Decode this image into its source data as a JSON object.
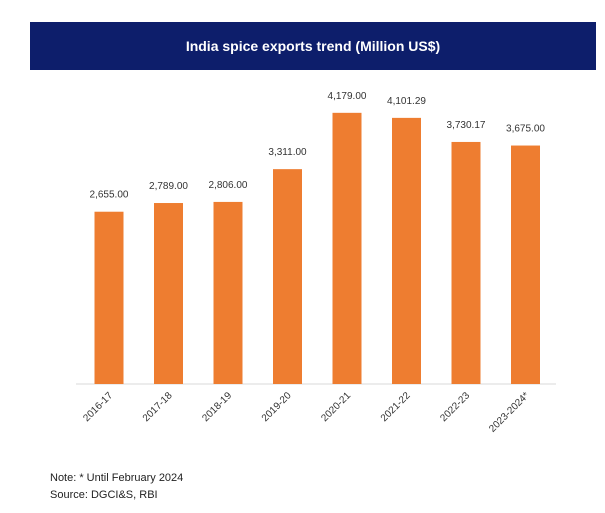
{
  "chart_data": {
    "type": "bar",
    "title": "India spice exports trend (Million US$)",
    "categories": [
      "2016-17",
      "2017-18",
      "2018-19",
      "2019-20",
      "2020-21",
      "2021-22",
      "2022-23",
      "2023-2024*"
    ],
    "values": [
      2655.0,
      2789.0,
      2806.0,
      3311.0,
      4179.0,
      4101.29,
      3730.17,
      3675.0
    ],
    "value_labels": [
      "2,655.00",
      "2,789.00",
      "2,806.00",
      "3,311.00",
      "4,179.00",
      "4,101.29",
      "3,730.17",
      "3,675.00"
    ],
    "xlabel": "",
    "ylabel": "",
    "ylim": [
      0,
      4500
    ],
    "grid": false,
    "bar_color": "#ee7d30",
    "title_background": "#0d1e6b"
  },
  "notes": {
    "note": "Note: * Until February 2024",
    "source": "Source: DGCI&S, RBI"
  }
}
